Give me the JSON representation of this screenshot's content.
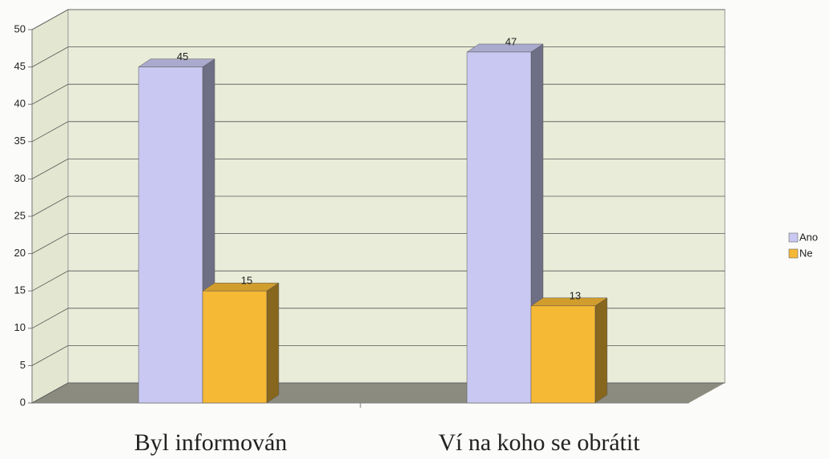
{
  "chart_data": {
    "type": "bar",
    "categories": [
      "Byl informován",
      "Ví na koho se obrátit"
    ],
    "series": [
      {
        "name": "Ano",
        "color": "#c8c8f2",
        "values": [
          45,
          47
        ]
      },
      {
        "name": "Ne",
        "color": "#f6b935",
        "values": [
          15,
          13
        ]
      }
    ],
    "ylim": [
      0,
      50
    ],
    "yticks": [
      0,
      5,
      10,
      15,
      20,
      25,
      30,
      35,
      40,
      45,
      50
    ],
    "grid": true,
    "legend": "right"
  }
}
